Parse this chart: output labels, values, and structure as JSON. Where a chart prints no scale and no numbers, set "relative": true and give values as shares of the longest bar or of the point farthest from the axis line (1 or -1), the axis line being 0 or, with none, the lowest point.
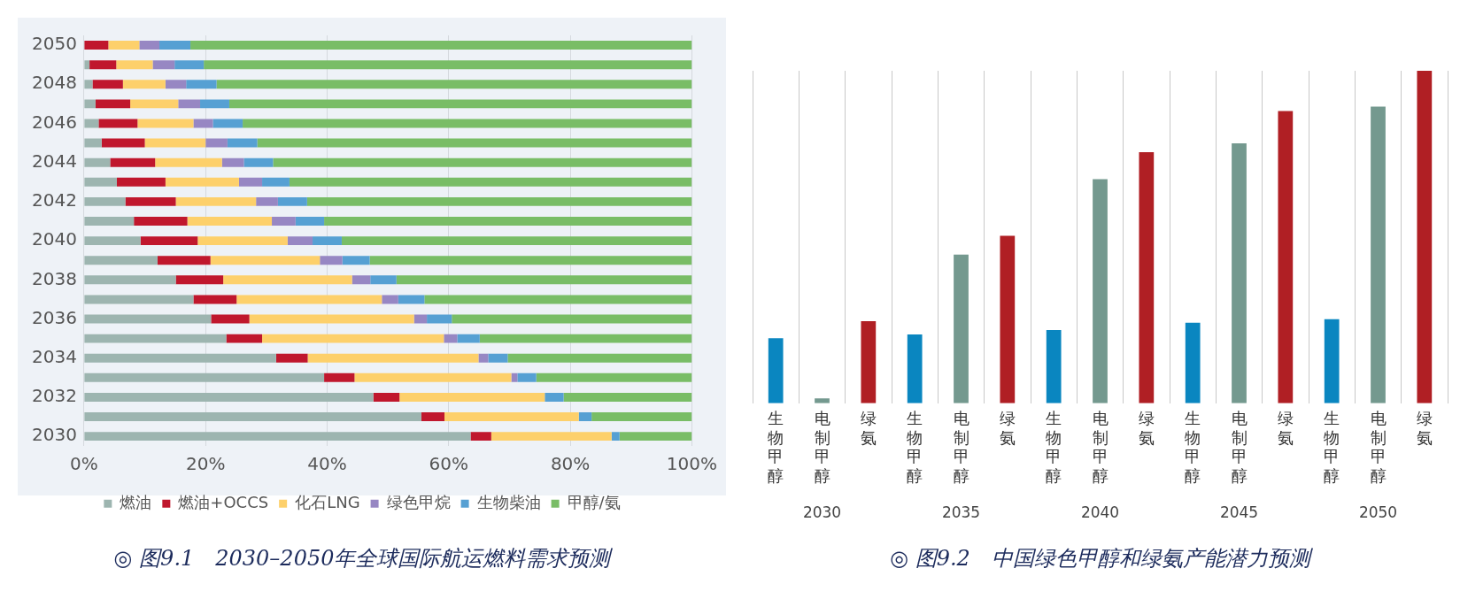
{
  "chart_data": [
    {
      "type": "bar",
      "orientation": "horizontal",
      "stacked": true,
      "title": "◎ 图9.1　2030–2050年全球国际航运燃料需求预测",
      "categories": [
        "2050",
        null,
        "2048",
        null,
        "2046",
        null,
        "2044",
        null,
        "2042",
        null,
        "2040",
        null,
        "2038",
        null,
        "2036",
        null,
        "2034",
        null,
        "2032",
        null,
        "2030"
      ],
      "series": [
        {
          "name": "燃油",
          "color": "#9db5b0",
          "values": [
            0,
            0.9,
            1.4,
            1.9,
            2.4,
            2.9,
            4.3,
            5.4,
            6.8,
            8.2,
            9.3,
            12.1,
            15.1,
            18.0,
            20.9,
            23.4,
            31.6,
            39.5,
            47.6,
            55.5,
            63.6
          ]
        },
        {
          "name": "燃油+OCCS",
          "color": "#c0172d",
          "values": [
            4.0,
            4.4,
            5.0,
            5.7,
            6.4,
            7.1,
            7.4,
            8.0,
            8.3,
            8.8,
            9.4,
            8.7,
            7.8,
            7.1,
            6.3,
            5.9,
            5.2,
            5.0,
            4.3,
            3.8,
            3.4
          ]
        },
        {
          "name": "化石LNG",
          "color": "#fdd06b",
          "values": [
            5.1,
            6.0,
            7.0,
            7.9,
            9.2,
            10.0,
            11.0,
            12.1,
            13.2,
            13.9,
            14.8,
            18.0,
            21.2,
            23.9,
            27.1,
            29.9,
            28.1,
            25.8,
            23.9,
            22.1,
            19.8
          ]
        },
        {
          "name": "绿色甲烷",
          "color": "#9787c3",
          "values": [
            3.3,
            3.6,
            3.4,
            3.6,
            3.2,
            3.6,
            3.6,
            3.8,
            3.6,
            3.9,
            4.1,
            3.7,
            3.0,
            2.7,
            2.1,
            2.2,
            1.6,
            1.0,
            0,
            0,
            0
          ]
        },
        {
          "name": "生物柴油",
          "color": "#56a0d3",
          "values": [
            5.1,
            4.8,
            5.0,
            4.8,
            4.9,
            4.9,
            4.8,
            4.5,
            4.8,
            4.7,
            4.8,
            4.5,
            4.3,
            4.3,
            4.1,
            3.7,
            3.2,
            3.1,
            3.1,
            2.1,
            1.3
          ]
        },
        {
          "name": "甲醇/氨",
          "color": "#79bd66",
          "values": [
            82.5,
            80.3,
            78.2,
            76.1,
            73.9,
            71.5,
            68.9,
            66.2,
            63.3,
            60.5,
            57.6,
            53.0,
            48.6,
            44.0,
            39.5,
            34.9,
            30.3,
            25.6,
            21.1,
            16.5,
            11.9
          ]
        }
      ],
      "xlim": [
        0,
        100
      ],
      "xticks": [
        {
          "value": 0,
          "label": "0%"
        },
        {
          "value": 20,
          "label": "20%"
        },
        {
          "value": 40,
          "label": "40%"
        },
        {
          "value": 60,
          "label": "60%"
        },
        {
          "value": 80,
          "label": "80%"
        },
        {
          "value": 100,
          "label": "100%"
        }
      ],
      "grid": "x",
      "legend": "bottom"
    },
    {
      "type": "bar",
      "relative": true,
      "title": "◎ 图9.2　中国绿色甲醇和绿氨产能潜力预测",
      "categories": [
        "生物甲醇",
        "电制甲醇",
        "绿氨",
        "生物甲醇",
        "电制甲醇",
        "绿氨",
        "生物甲醇",
        "电制甲醇",
        "绿氨",
        "生物甲醇",
        "电制甲醇",
        "绿氨",
        "生物甲醇",
        "电制甲醇",
        "绿氨"
      ],
      "values": [
        0.196,
        0.015,
        0.247,
        0.207,
        0.447,
        0.504,
        0.22,
        0.674,
        0.755,
        0.242,
        0.782,
        0.879,
        0.253,
        0.892,
        1
      ],
      "colors": [
        "#0a86c0",
        "#74998f",
        "#b01f24",
        "#0a86c0",
        "#74998f",
        "#b01f24",
        "#0a86c0",
        "#74998f",
        "#b01f24",
        "#0a86c0",
        "#74998f",
        "#b01f24",
        "#0a86c0",
        "#74998f",
        "#b01f24"
      ],
      "annotations": [
        "2030",
        "2035",
        "2040",
        "2045",
        "2050"
      ],
      "grid": "x"
    }
  ]
}
